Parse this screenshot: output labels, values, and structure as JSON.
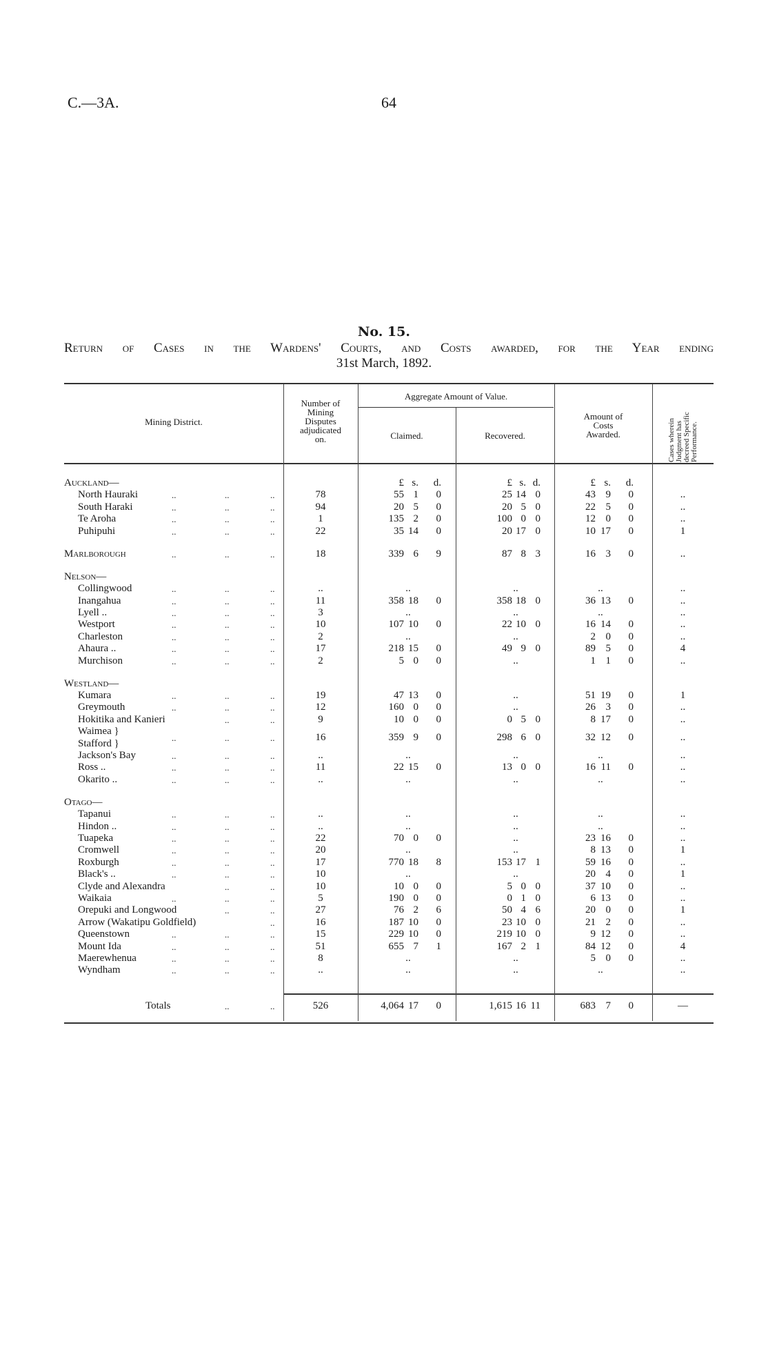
{
  "header": {
    "ref": "C.—3A.",
    "page": "64"
  },
  "title": {
    "number": "No. 15.",
    "line1": "Return of Cases in the Wardens' Courts, and Costs awarded, for the Year ending",
    "line2": "31st March, 1892."
  },
  "columns": {
    "district": "Mining District.",
    "disputes": [
      "Number of",
      "Mining",
      "Disputes",
      "adjudicated",
      "on."
    ],
    "aggregate": "Aggregate Amount of Value.",
    "claimed": "Claimed.",
    "recovered": "Recovered.",
    "costs": [
      "Amount of",
      "Costs",
      "Awarded."
    ],
    "cases": [
      "Cases wherein",
      "Judgment has",
      "decreed Specific",
      "Performance."
    ],
    "units": [
      "£",
      "s.",
      "d."
    ]
  },
  "leader": "..",
  "sections": [
    {
      "name": "Auckland—",
      "rows": [
        {
          "name": "North Hauraki",
          "leaders": 3,
          "disputes": "78",
          "claimed": [
            "55",
            "1",
            "0"
          ],
          "recovered": [
            "25",
            "14",
            "0"
          ],
          "costs": [
            "43",
            "9",
            "0"
          ],
          "cases": ".."
        },
        {
          "name": "South Haraki",
          "leaders": 3,
          "disputes": "94",
          "claimed": [
            "20",
            "5",
            "0"
          ],
          "recovered": [
            "20",
            "5",
            "0"
          ],
          "costs": [
            "22",
            "5",
            "0"
          ],
          "cases": ".."
        },
        {
          "name": "Te Aroha",
          "leaders": 3,
          "disputes": "1",
          "claimed": [
            "135",
            "2",
            "0"
          ],
          "recovered": [
            "100",
            "0",
            "0"
          ],
          "costs": [
            "12",
            "0",
            "0"
          ],
          "cases": ".."
        },
        {
          "name": "Puhipuhi",
          "leaders": 3,
          "disputes": "22",
          "claimed": [
            "35",
            "14",
            "0"
          ],
          "recovered": [
            "20",
            "17",
            "0"
          ],
          "costs": [
            "10",
            "17",
            "0"
          ],
          "cases": "1"
        }
      ]
    },
    {
      "name": "Marlborough",
      "leaders": 3,
      "disputes": "18",
      "claimed": [
        "339",
        "6",
        "9"
      ],
      "recovered": [
        "87",
        "8",
        "3"
      ],
      "costs": [
        "16",
        "3",
        "0"
      ],
      "cases": "..",
      "rows": []
    },
    {
      "name": "Nelson—",
      "rows": [
        {
          "name": "Collingwood",
          "leaders": 3,
          "disputes": "..",
          "claimed": "..",
          "recovered": "..",
          "costs": "..",
          "cases": ".."
        },
        {
          "name": "Inangahua",
          "leaders": 3,
          "disputes": "11",
          "claimed": [
            "358",
            "18",
            "0"
          ],
          "recovered": [
            "358",
            "18",
            "0"
          ],
          "costs": [
            "36",
            "13",
            "0"
          ],
          "cases": ".."
        },
        {
          "name": "Lyell ..",
          "leaders": 3,
          "disputes": "3",
          "claimed": "..",
          "recovered": "..",
          "costs": "..",
          "cases": ".."
        },
        {
          "name": "Westport",
          "leaders": 3,
          "disputes": "10",
          "claimed": [
            "107",
            "10",
            "0"
          ],
          "recovered": [
            "22",
            "10",
            "0"
          ],
          "costs": [
            "16",
            "14",
            "0"
          ],
          "cases": ".."
        },
        {
          "name": "Charleston",
          "leaders": 3,
          "disputes": "2",
          "claimed": "..",
          "recovered": "..",
          "costs": [
            "2",
            "0",
            "0"
          ],
          "cases": ".."
        },
        {
          "name": "Ahaura ..",
          "leaders": 3,
          "disputes": "17",
          "claimed": [
            "218",
            "15",
            "0"
          ],
          "recovered": [
            "49",
            "9",
            "0"
          ],
          "costs": [
            "89",
            "5",
            "0"
          ],
          "cases": "4"
        },
        {
          "name": "Murchison",
          "leaders": 3,
          "disputes": "2",
          "claimed": [
            "5",
            "0",
            "0"
          ],
          "recovered": "..",
          "costs": [
            "1",
            "1",
            "0"
          ],
          "cases": ".."
        }
      ]
    },
    {
      "name": "Westland—",
      "rows": [
        {
          "name": "Kumara",
          "leaders": 3,
          "disputes": "19",
          "claimed": [
            "47",
            "13",
            "0"
          ],
          "recovered": "..",
          "costs": [
            "51",
            "19",
            "0"
          ],
          "cases": "1"
        },
        {
          "name": "Greymouth",
          "leaders": 3,
          "disputes": "12",
          "claimed": [
            "160",
            "0",
            "0"
          ],
          "recovered": "..",
          "costs": [
            "26",
            "3",
            "0"
          ],
          "cases": ".."
        },
        {
          "name": "Hokitika and Kanieri",
          "leaders": 2,
          "disputes": "9",
          "claimed": [
            "10",
            "0",
            "0"
          ],
          "recovered": [
            "0",
            "5",
            "0"
          ],
          "costs": [
            "8",
            "17",
            "0"
          ],
          "cases": ".."
        },
        {
          "name": "Waimea }",
          "name2": "Stafford }",
          "leaders": 3,
          "disputes": "16",
          "claimed": [
            "359",
            "9",
            "0"
          ],
          "recovered": [
            "298",
            "6",
            "0"
          ],
          "costs": [
            "32",
            "12",
            "0"
          ],
          "cases": ".."
        },
        {
          "name": "Jackson's Bay",
          "leaders": 3,
          "disputes": "..",
          "claimed": "..",
          "recovered": "..",
          "costs": "..",
          "cases": ".."
        },
        {
          "name": "Ross ..",
          "leaders": 3,
          "disputes": "11",
          "claimed": [
            "22",
            "15",
            "0"
          ],
          "recovered": [
            "13",
            "0",
            "0"
          ],
          "costs": [
            "16",
            "11",
            "0"
          ],
          "cases": ".."
        },
        {
          "name": "Okarito ..",
          "leaders": 3,
          "disputes": "..",
          "claimed": "..",
          "recovered": "..",
          "costs": "..",
          "cases": ".."
        }
      ]
    },
    {
      "name": "Otago—",
      "rows": [
        {
          "name": "Tapanui",
          "leaders": 3,
          "disputes": "..",
          "claimed": "..",
          "recovered": "..",
          "costs": "..",
          "cases": ".."
        },
        {
          "name": "Hindon ..",
          "leaders": 3,
          "disputes": "..",
          "claimed": "..",
          "recovered": "..",
          "costs": "..",
          "cases": ".."
        },
        {
          "name": "Tuapeka",
          "leaders": 3,
          "disputes": "22",
          "claimed": [
            "70",
            "0",
            "0"
          ],
          "recovered": "..",
          "costs": [
            "23",
            "16",
            "0"
          ],
          "cases": ".."
        },
        {
          "name": "Cromwell",
          "leaders": 3,
          "disputes": "20",
          "claimed": "..",
          "recovered": "..",
          "costs": [
            "8",
            "13",
            "0"
          ],
          "cases": "1"
        },
        {
          "name": "Roxburgh",
          "leaders": 3,
          "disputes": "17",
          "claimed": [
            "770",
            "18",
            "8"
          ],
          "recovered": [
            "153",
            "17",
            "1"
          ],
          "costs": [
            "59",
            "16",
            "0"
          ],
          "cases": ".."
        },
        {
          "name": "Black's ..",
          "leaders": 3,
          "disputes": "10",
          "claimed": "..",
          "recovered": "..",
          "costs": [
            "20",
            "4",
            "0"
          ],
          "cases": "1"
        },
        {
          "name": "Clyde and Alexandra",
          "leaders": 2,
          "disputes": "10",
          "claimed": [
            "10",
            "0",
            "0"
          ],
          "recovered": [
            "5",
            "0",
            "0"
          ],
          "costs": [
            "37",
            "10",
            "0"
          ],
          "cases": ".."
        },
        {
          "name": "Waikaia",
          "leaders": 3,
          "disputes": "5",
          "claimed": [
            "190",
            "0",
            "0"
          ],
          "recovered": [
            "0",
            "1",
            "0"
          ],
          "costs": [
            "6",
            "13",
            "0"
          ],
          "cases": ".."
        },
        {
          "name": "Orepuki and Longwood",
          "leaders": 2,
          "disputes": "27",
          "claimed": [
            "76",
            "2",
            "6"
          ],
          "recovered": [
            "50",
            "4",
            "6"
          ],
          "costs": [
            "20",
            "0",
            "0"
          ],
          "cases": "1"
        },
        {
          "name": "Arrow (Wakatipu Goldfield)",
          "leaders": 1,
          "disputes": "16",
          "claimed": [
            "187",
            "10",
            "0"
          ],
          "recovered": [
            "23",
            "10",
            "0"
          ],
          "costs": [
            "21",
            "2",
            "0"
          ],
          "cases": ".."
        },
        {
          "name": "Queenstown",
          "leaders": 3,
          "disputes": "15",
          "claimed": [
            "229",
            "10",
            "0"
          ],
          "recovered": [
            "219",
            "10",
            "0"
          ],
          "costs": [
            "9",
            "12",
            "0"
          ],
          "cases": ".."
        },
        {
          "name": "Mount Ida",
          "leaders": 3,
          "disputes": "51",
          "claimed": [
            "655",
            "7",
            "1"
          ],
          "recovered": [
            "167",
            "2",
            "1"
          ],
          "costs": [
            "84",
            "12",
            "0"
          ],
          "cases": "4"
        },
        {
          "name": "Maerewhenua",
          "leaders": 3,
          "disputes": "8",
          "claimed": "..",
          "recovered": "..",
          "costs": [
            "5",
            "0",
            "0"
          ],
          "cases": ".."
        },
        {
          "name": "Wyndham",
          "leaders": 3,
          "disputes": "..",
          "claimed": "..",
          "recovered": "..",
          "costs": "..",
          "cases": ".."
        }
      ]
    }
  ],
  "totals": {
    "label": "Totals",
    "disputes": "526",
    "claimed": [
      "4,064",
      "17",
      "0"
    ],
    "recovered": [
      "1,615",
      "16",
      "11"
    ],
    "costs": [
      "683",
      "7",
      "0"
    ],
    "cases": "—"
  }
}
